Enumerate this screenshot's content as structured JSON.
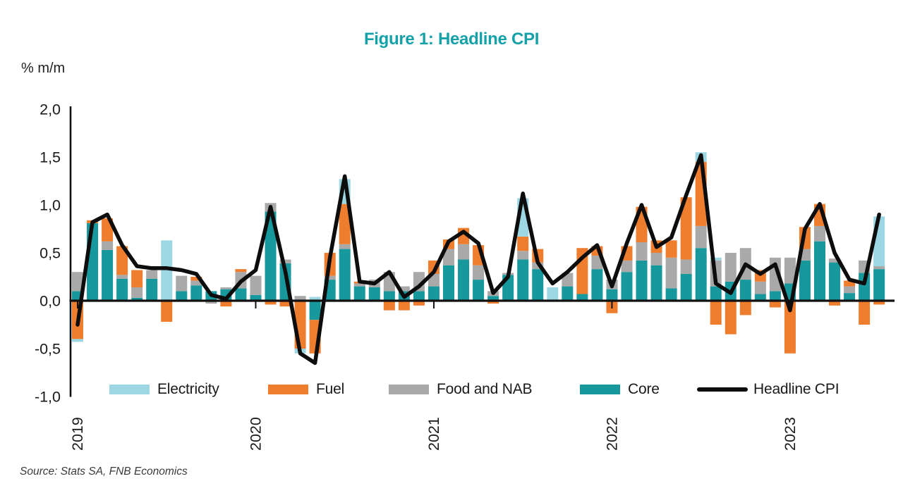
{
  "header": {
    "title": "Figure 1: Headline CPI",
    "title_color": "#14a1a8",
    "y_axis_unit": "% m/m"
  },
  "source": {
    "text": "Source: Stats SA, FNB Economics"
  },
  "legend": [
    {
      "label": "Electricity",
      "color": "#9ed7e4",
      "type": "swatch"
    },
    {
      "label": "Fuel",
      "color": "#ee7d2e",
      "type": "swatch"
    },
    {
      "label": "Food and NAB",
      "color": "#a9a9a9",
      "type": "swatch"
    },
    {
      "label": "Core",
      "color": "#17989c",
      "type": "swatch"
    },
    {
      "label": "Headline CPI",
      "color": "#0d0d0d",
      "type": "line"
    }
  ],
  "chart_data": {
    "type": "bar",
    "subtype": "stacked-bar-with-line",
    "title": "Figure 1: Headline CPI",
    "ylabel": "% m/m",
    "xlabel": "",
    "grid": false,
    "legend_position": "bottom",
    "ylim": [
      -1.0,
      2.0
    ],
    "y_ticks": [
      {
        "label": "2,0",
        "value": 2.0
      },
      {
        "label": "1,5",
        "value": 1.5
      },
      {
        "label": "1,0",
        "value": 1.0
      },
      {
        "label": "0,5",
        "value": 0.5
      },
      {
        "label": "0,0",
        "value": 0.0
      },
      {
        "label": "-0,5",
        "value": -0.5
      },
      {
        "label": "-1,0",
        "value": -1.0
      }
    ],
    "year_labels": [
      "2019",
      "2020",
      "2021",
      "2022",
      "2023"
    ],
    "year_tick_month_indices": [
      0,
      12,
      24,
      36,
      48
    ],
    "months": [
      "2019-01",
      "2019-02",
      "2019-03",
      "2019-04",
      "2019-05",
      "2019-06",
      "2019-07",
      "2019-08",
      "2019-09",
      "2019-10",
      "2019-11",
      "2019-12",
      "2020-01",
      "2020-02",
      "2020-03",
      "2020-04",
      "2020-05",
      "2020-06",
      "2020-07",
      "2020-08",
      "2020-09",
      "2020-10",
      "2020-11",
      "2020-12",
      "2021-01",
      "2021-02",
      "2021-03",
      "2021-04",
      "2021-05",
      "2021-06",
      "2021-07",
      "2021-08",
      "2021-09",
      "2021-10",
      "2021-11",
      "2021-12",
      "2022-01",
      "2022-02",
      "2022-03",
      "2022-04",
      "2022-05",
      "2022-06",
      "2022-07",
      "2022-08",
      "2022-09",
      "2022-10",
      "2022-11",
      "2022-12",
      "2023-01",
      "2023-02",
      "2023-03",
      "2023-04",
      "2023-05",
      "2023-06",
      "2023-07"
    ],
    "stack_order": [
      "core",
      "food_nab",
      "fuel",
      "electricity"
    ],
    "series": [
      {
        "name": "Electricity",
        "key": "electricity",
        "color": "#9ed7e4",
        "values": [
          -0.03,
          0,
          0,
          0,
          0,
          0,
          0.63,
          0,
          0,
          0,
          0,
          0,
          0,
          0,
          0,
          -0.05,
          0.04,
          0,
          0.26,
          0,
          0,
          0,
          0,
          0,
          0,
          0,
          0,
          0,
          0,
          0,
          0.4,
          0,
          0.14,
          0,
          0,
          0,
          0,
          0,
          0,
          0,
          0,
          0,
          0.1,
          0.03,
          0,
          0,
          0,
          0,
          0,
          0,
          0,
          0,
          0,
          0,
          0.52
        ]
      },
      {
        "name": "Fuel",
        "key": "fuel",
        "color": "#ee7d2e",
        "values": [
          -0.4,
          0.03,
          0.24,
          0.3,
          0.18,
          0,
          -0.22,
          0,
          0.04,
          0,
          -0.06,
          0.03,
          0,
          -0.04,
          -0.06,
          -0.5,
          -0.35,
          0.24,
          0.42,
          0.02,
          0,
          -0.1,
          -0.1,
          -0.05,
          0.14,
          0.1,
          0.17,
          0.21,
          -0.03,
          0,
          0.15,
          0.14,
          0,
          0,
          0.48,
          0.1,
          -0.13,
          0.15,
          0.37,
          0.13,
          0.18,
          0.65,
          0.67,
          -0.25,
          -0.35,
          -0.15,
          0.12,
          -0.07,
          -0.55,
          0.23,
          0.23,
          -0.05,
          0.06,
          -0.25,
          -0.04
        ]
      },
      {
        "name": "Food and NAB",
        "key": "food_nab",
        "color": "#a9a9a9",
        "values": [
          0.2,
          0,
          0.09,
          0.04,
          0.11,
          0.09,
          0,
          0.16,
          0.05,
          -0.03,
          0.02,
          0.17,
          0.2,
          0.09,
          0.04,
          0.05,
          0,
          0.04,
          0.05,
          0.03,
          0.08,
          0.2,
          0.05,
          0.2,
          0.13,
          0.17,
          0.16,
          0.15,
          0.05,
          0.02,
          0.09,
          0.07,
          0,
          0.14,
          0,
          0.14,
          0.1,
          0.12,
          0.19,
          0.13,
          0.32,
          0.15,
          0.23,
          0.27,
          0.3,
          0.33,
          0.13,
          0.35,
          0.27,
          0.12,
          0.16,
          0.04,
          0.07,
          0.13,
          0.03
        ]
      },
      {
        "name": "Core",
        "key": "core",
        "color": "#17989c",
        "values": [
          0.1,
          0.81,
          0.53,
          0.23,
          0.03,
          0.23,
          0,
          0.1,
          0.16,
          0.1,
          0.12,
          0.13,
          0.06,
          0.93,
          0.39,
          0,
          -0.2,
          0.22,
          0.54,
          0.15,
          0.14,
          0.1,
          0.1,
          0.1,
          0.15,
          0.37,
          0.43,
          0.22,
          0.05,
          0.27,
          0.43,
          0.33,
          0,
          0.15,
          0.07,
          0.33,
          0.12,
          0.3,
          0.42,
          0.37,
          0.13,
          0.28,
          0.55,
          0.15,
          0.2,
          0.22,
          0.07,
          0.1,
          0.18,
          0.42,
          0.62,
          0.4,
          0.08,
          0.29,
          0.33
        ]
      }
    ],
    "line": {
      "name": "Headline CPI",
      "color": "#0d0d0d",
      "values": [
        -0.25,
        0.82,
        0.9,
        0.58,
        0.36,
        0.34,
        0.34,
        0.32,
        0.28,
        0.06,
        0.02,
        0.2,
        0.32,
        0.98,
        0.3,
        -0.55,
        -0.65,
        0.45,
        1.3,
        0.2,
        0.18,
        0.3,
        0.04,
        0.15,
        0.3,
        0.62,
        0.72,
        0.6,
        0.08,
        0.25,
        1.12,
        0.4,
        0.18,
        0.3,
        0.45,
        0.58,
        0.15,
        0.6,
        1.0,
        0.56,
        0.66,
        1.1,
        1.52,
        0.18,
        0.08,
        0.38,
        0.28,
        0.38,
        -0.1,
        0.75,
        1.01,
        0.5,
        0.22,
        0.18,
        0.9
      ]
    }
  }
}
